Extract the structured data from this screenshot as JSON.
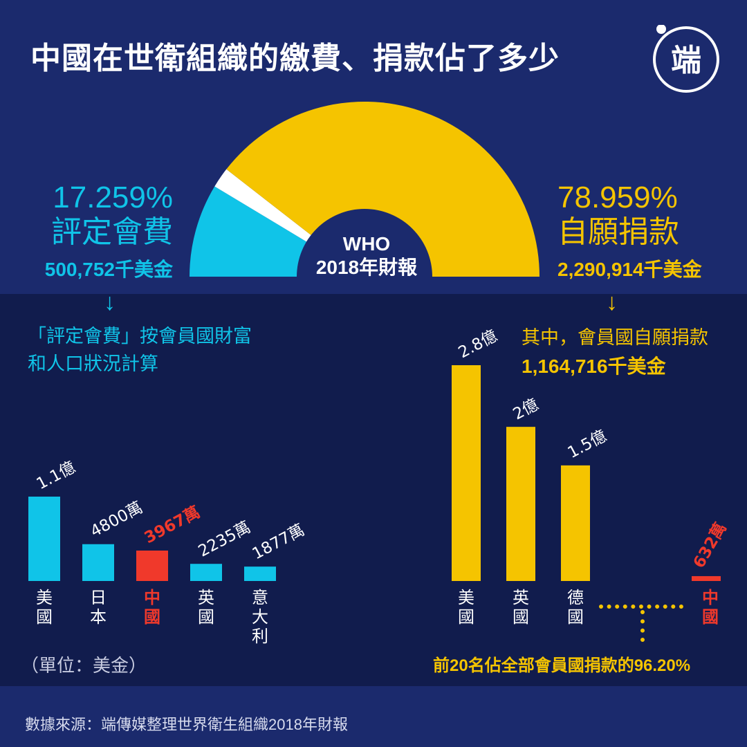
{
  "title": "中國在世衛組織的繳費、捐款佔了多少",
  "logo_text": "端",
  "colors": {
    "cyan": "#10c4e8",
    "yellow": "#f5c400",
    "red": "#f0392b",
    "white": "#ffffff"
  },
  "who_label": {
    "line1": "WHO",
    "line2": "2018年財報"
  },
  "assessed": {
    "pct": "17.259%",
    "name": "評定會費",
    "amount": "500,752千美金"
  },
  "voluntary": {
    "pct": "78.959%",
    "name": "自願捐款",
    "amount": "2,290,914千美金"
  },
  "note_left": {
    "line1": "「評定會費」按會員國財富",
    "line2": "和人口狀況計算"
  },
  "note_right": {
    "line1": "其中，會員國自願捐款",
    "line2": "1,164,716千美金"
  },
  "unit_label": "（單位：美金）",
  "top20_label": "前20名佔全部會員國捐款的96.20%",
  "source": "數據來源：端傳媒整理世界衛生組織2018年財報",
  "arrow_glyph": "↓",
  "chart_data": [
    {
      "type": "pie",
      "slices": [
        {
          "label": "評定會費",
          "value": 17.259,
          "color": "#10c4e8"
        },
        {
          "label": "",
          "value": 3.782,
          "color": "#ffffff"
        },
        {
          "label": "自願捐款",
          "value": 78.959,
          "color": "#f5c400"
        }
      ]
    },
    {
      "type": "bar",
      "series_name": "評定會費",
      "categories": [
        "美國",
        "日本",
        "中國",
        "英國",
        "意大利"
      ],
      "values": [
        110000000,
        48000000,
        39670000,
        22350000,
        18770000
      ],
      "value_labels": [
        "1.1億",
        "4800萬",
        "3967萬",
        "2235萬",
        "1877萬"
      ],
      "highlight": "中國",
      "ylim": [
        0,
        110000000
      ]
    },
    {
      "type": "bar",
      "series_name": "自願捐款",
      "categories": [
        "美國",
        "英國",
        "德國",
        "中國"
      ],
      "values": [
        280000000,
        200000000,
        150000000,
        6320000
      ],
      "value_labels": [
        "2.8億",
        "2億",
        "1.5億",
        "632萬"
      ],
      "highlight": "中國",
      "ylim": [
        0,
        280000000
      ]
    }
  ]
}
